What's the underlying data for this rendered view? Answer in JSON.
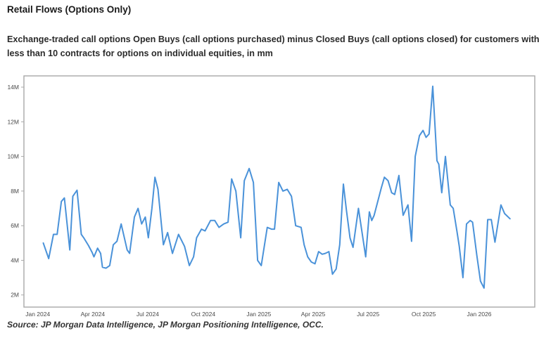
{
  "page": {
    "title": "Retail Flows (Options Only)",
    "subtitle_line1": "Exchange-traded call options Open Buys (call options purchased) minus Closed Buys (call options closed) for customers with",
    "subtitle_line2": "less than 10 contracts for options on individual equities, in mm",
    "source": "Source: JP Morgan Data Intelligence, JP Morgan Positioning Intelligence, OCC."
  },
  "chart_data": {
    "type": "line",
    "title": "Retail Flows (Options Only)",
    "subtitle": "Exchange-traded call options Open Buys (call options purchased) minus Closed Buys (call options closed) for customers with less than 10 contracts for options on individual equities, in mm",
    "xlabel": "",
    "ylabel": "",
    "unit": "contracts, millions (mm)",
    "grid": false,
    "legend_position": "none",
    "line_color": "#4a92d9",
    "border_color": "#a8a8a8",
    "tick_label_color": "#4a4a4a",
    "ylim": [
      1.3,
      14.65
    ],
    "xlim_days": [
      -23,
      823
    ],
    "x_axis_note": "x expressed as days since 2024-01-01; data approximately weekly",
    "y_ticks": [
      {
        "value": 2,
        "label": "2M"
      },
      {
        "value": 4,
        "label": "4M"
      },
      {
        "value": 6,
        "label": "6M"
      },
      {
        "value": 8,
        "label": "8M"
      },
      {
        "value": 10,
        "label": "10M"
      },
      {
        "value": 12,
        "label": "12M"
      },
      {
        "value": 14,
        "label": "14M"
      }
    ],
    "x_ticks": [
      {
        "day": 0,
        "label": "Jan 2024"
      },
      {
        "day": 91,
        "label": "Apr 2024"
      },
      {
        "day": 182,
        "label": "Jul 2024"
      },
      {
        "day": 274,
        "label": "Oct 2024"
      },
      {
        "day": 366,
        "label": "Jan 2025"
      },
      {
        "day": 456,
        "label": "Apr 2025"
      },
      {
        "day": 547,
        "label": "Jul 2025"
      },
      {
        "day": 639,
        "label": "Oct 2025"
      },
      {
        "day": 731,
        "label": "Jan 2026"
      }
    ],
    "series": [
      {
        "name": "Call options Open Buys minus Closed Buys (<10 contracts), mm",
        "color": "#4a92d9",
        "points": [
          [
            9,
            5.0
          ],
          [
            18,
            4.1
          ],
          [
            26,
            5.5
          ],
          [
            32,
            5.5
          ],
          [
            39,
            7.4
          ],
          [
            44,
            7.6
          ],
          [
            53,
            4.6
          ],
          [
            58,
            7.7
          ],
          [
            65,
            8.05
          ],
          [
            72,
            5.5
          ],
          [
            76,
            5.3
          ],
          [
            84,
            4.85
          ],
          [
            90,
            4.45
          ],
          [
            93,
            4.2
          ],
          [
            99,
            4.7
          ],
          [
            104,
            4.4
          ],
          [
            107,
            3.6
          ],
          [
            113,
            3.55
          ],
          [
            119,
            3.7
          ],
          [
            125,
            4.9
          ],
          [
            131,
            5.1
          ],
          [
            138,
            6.1
          ],
          [
            148,
            4.6
          ],
          [
            152,
            4.4
          ],
          [
            160,
            6.5
          ],
          [
            166,
            7.0
          ],
          [
            172,
            6.1
          ],
          [
            178,
            6.5
          ],
          [
            183,
            5.3
          ],
          [
            189,
            7.0
          ],
          [
            194,
            8.8
          ],
          [
            199,
            8.1
          ],
          [
            208,
            4.9
          ],
          [
            215,
            5.6
          ],
          [
            223,
            4.4
          ],
          [
            233,
            5.5
          ],
          [
            243,
            4.8
          ],
          [
            251,
            3.7
          ],
          [
            258,
            4.2
          ],
          [
            263,
            5.3
          ],
          [
            271,
            5.8
          ],
          [
            277,
            5.7
          ],
          [
            286,
            6.3
          ],
          [
            293,
            6.3
          ],
          [
            300,
            5.9
          ],
          [
            308,
            6.1
          ],
          [
            315,
            6.2
          ],
          [
            321,
            8.7
          ],
          [
            328,
            8.0
          ],
          [
            336,
            5.3
          ],
          [
            342,
            8.6
          ],
          [
            350,
            9.3
          ],
          [
            357,
            8.5
          ],
          [
            364,
            4.0
          ],
          [
            370,
            3.7
          ],
          [
            380,
            5.9
          ],
          [
            387,
            5.8
          ],
          [
            392,
            5.8
          ],
          [
            399,
            8.5
          ],
          [
            406,
            8.0
          ],
          [
            413,
            8.1
          ],
          [
            420,
            7.7
          ],
          [
            427,
            6.0
          ],
          [
            436,
            5.9
          ],
          [
            441,
            4.9
          ],
          [
            447,
            4.2
          ],
          [
            453,
            3.9
          ],
          [
            459,
            3.8
          ],
          [
            465,
            4.5
          ],
          [
            471,
            4.35
          ],
          [
            476,
            4.4
          ],
          [
            482,
            4.5
          ],
          [
            488,
            3.2
          ],
          [
            494,
            3.5
          ],
          [
            500,
            4.9
          ],
          [
            506,
            8.4
          ],
          [
            511,
            6.9
          ],
          [
            517,
            5.3
          ],
          [
            522,
            4.75
          ],
          [
            531,
            7.0
          ],
          [
            543,
            4.2
          ],
          [
            549,
            6.8
          ],
          [
            553,
            6.3
          ],
          [
            557,
            6.6
          ],
          [
            569,
            8.2
          ],
          [
            574,
            8.8
          ],
          [
            580,
            8.6
          ],
          [
            586,
            7.9
          ],
          [
            591,
            7.8
          ],
          [
            598,
            8.9
          ],
          [
            605,
            6.6
          ],
          [
            613,
            7.2
          ],
          [
            619,
            5.1
          ],
          [
            625,
            10.0
          ],
          [
            632,
            11.2
          ],
          [
            638,
            11.5
          ],
          [
            643,
            11.1
          ],
          [
            648,
            11.3
          ],
          [
            654,
            14.05
          ],
          [
            661,
            9.75
          ],
          [
            664,
            9.55
          ],
          [
            669,
            7.9
          ],
          [
            675,
            10.0
          ],
          [
            683,
            7.2
          ],
          [
            688,
            7.0
          ],
          [
            694,
            5.7
          ],
          [
            698,
            4.8
          ],
          [
            704,
            3.0
          ],
          [
            710,
            6.1
          ],
          [
            716,
            6.3
          ],
          [
            720,
            6.2
          ],
          [
            727,
            4.3
          ],
          [
            733,
            2.8
          ],
          [
            739,
            2.4
          ],
          [
            745,
            6.35
          ],
          [
            751,
            6.35
          ],
          [
            757,
            5.05
          ],
          [
            767,
            7.2
          ],
          [
            773,
            6.7
          ],
          [
            782,
            6.4
          ]
        ]
      }
    ]
  }
}
